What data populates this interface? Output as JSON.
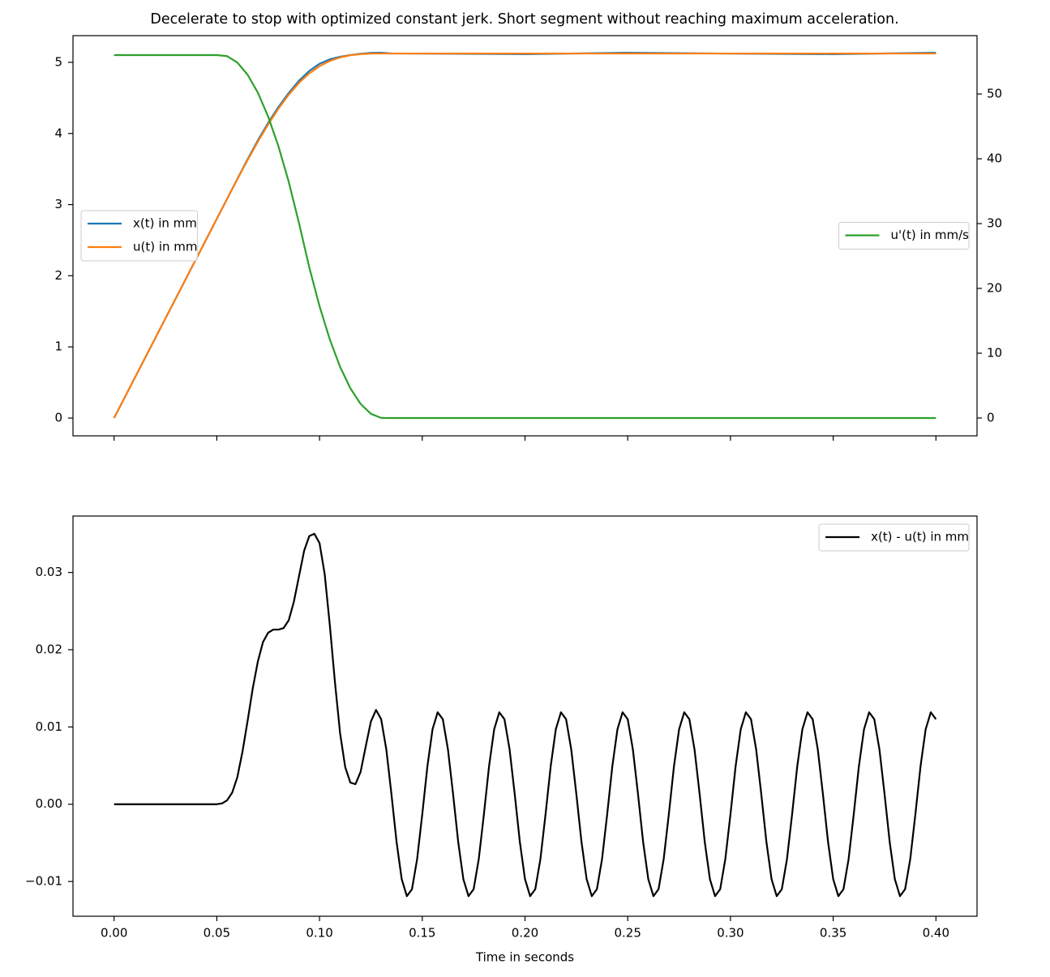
{
  "chart_data": [
    {
      "type": "line",
      "title": "Decelerate to stop with optimized constant jerk. Short segment without reaching maximum acceleration.",
      "x": [
        0,
        0.05,
        0.055,
        0.06,
        0.065,
        0.07,
        0.075,
        0.08,
        0.085,
        0.09,
        0.095,
        0.1,
        0.105,
        0.11,
        0.115,
        0.12,
        0.125,
        0.13,
        0.135,
        0.15,
        0.2,
        0.25,
        0.3,
        0.35,
        0.4
      ],
      "series": [
        {
          "name": "x(t)  in mm",
          "color": "#1f77b4",
          "values": [
            0,
            2.8,
            3.0803,
            3.3605,
            3.6378,
            3.9035,
            4.1492,
            4.3716,
            4.5688,
            4.7415,
            4.8797,
            4.9798,
            5.0422,
            5.0782,
            5.1023,
            5.1202,
            5.1334,
            5.135,
            5.1253,
            5.1227,
            5.1143,
            5.135,
            5.1227,
            5.1143,
            5.135
          ]
        },
        {
          "name": "u(t)  in mm",
          "color": "#ff7f0e",
          "values": [
            0,
            2.8,
            3.0798,
            3.357,
            3.627,
            3.885,
            4.127,
            4.349,
            4.545,
            4.712,
            4.845,
            4.946,
            5.019,
            5.069,
            5.0995,
            5.116,
            5.1227,
            5.124,
            5.124,
            5.124,
            5.124,
            5.124,
            5.124,
            5.124,
            5.124
          ]
        },
        {
          "name": "u'(t)  in mm/s",
          "color": "#2ca02c",
          "axis": "y2",
          "values": [
            56,
            56,
            55.84,
            54.85,
            52.97,
            50.19,
            46.51,
            41.93,
            36.46,
            30.09,
            23.26,
            17.25,
            12.13,
            7.91,
            4.59,
            2.17,
            0.65,
            0.02,
            0,
            0,
            0,
            0,
            0,
            0,
            0
          ]
        }
      ],
      "xlim": [
        -0.02,
        0.42
      ],
      "xticks": [
        0,
        0.05,
        0.1,
        0.15,
        0.2,
        0.25,
        0.3,
        0.35,
        0.4
      ],
      "xticklabels": false,
      "ylim": [
        -0.25,
        5.375
      ],
      "yticks": [
        0,
        1,
        2,
        3,
        4,
        5
      ],
      "y2lim": [
        -2.75,
        59
      ],
      "y2ticks": [
        0,
        10,
        20,
        30,
        40,
        50
      ],
      "legend": "center left",
      "legend2": "center right"
    },
    {
      "type": "line",
      "x": [
        0,
        0.05,
        0.0525,
        0.055,
        0.0575,
        0.06,
        0.0625,
        0.065,
        0.0675,
        0.07,
        0.0725,
        0.075,
        0.0775,
        0.08,
        0.0825,
        0.085,
        0.0875,
        0.09,
        0.0925,
        0.095,
        0.0975,
        0.1,
        0.1025,
        0.105,
        0.1075,
        0.11,
        0.1125,
        0.115,
        0.1175,
        0.12,
        0.1225,
        0.125,
        0.1275,
        0.13,
        0.1325,
        0.135,
        0.1375,
        0.14,
        0.1425,
        0.145,
        0.1475,
        0.15,
        0.1525,
        0.155,
        0.1575,
        0.16,
        0.1625,
        0.165,
        0.1675,
        0.17,
        0.1725,
        0.175,
        0.1775,
        0.18,
        0.1825,
        0.185,
        0.1875,
        0.19,
        0.1925,
        0.195,
        0.1975,
        0.2,
        0.2025,
        0.205,
        0.2075,
        0.21,
        0.2125,
        0.215,
        0.2175,
        0.22,
        0.2225,
        0.225,
        0.2275,
        0.23,
        0.2325,
        0.235,
        0.2375,
        0.24,
        0.2425,
        0.245,
        0.2475,
        0.25,
        0.2525,
        0.255,
        0.2575,
        0.26,
        0.2625,
        0.265,
        0.2675,
        0.27,
        0.2725,
        0.275,
        0.2775,
        0.28,
        0.2825,
        0.285,
        0.2875,
        0.29,
        0.2925,
        0.295,
        0.2975,
        0.3,
        0.3025,
        0.305,
        0.3075,
        0.31,
        0.3125,
        0.315,
        0.3175,
        0.32,
        0.3225,
        0.325,
        0.3275,
        0.33,
        0.3325,
        0.335,
        0.3375,
        0.34,
        0.3425,
        0.345,
        0.3475,
        0.35,
        0.3525,
        0.355,
        0.3575,
        0.36,
        0.3625,
        0.365,
        0.3675,
        0.37,
        0.3725,
        0.375,
        0.3775,
        0.38,
        0.3825,
        0.385,
        0.3875,
        0.39,
        0.3925,
        0.395,
        0.3975,
        0.4
      ],
      "series": [
        {
          "name": "x(t) - u(t)  in mm",
          "color": "#000000",
          "values": [
            0,
            0,
            0.0001,
            0.0005,
            0.0015,
            0.0035,
            0.0068,
            0.0108,
            0.015,
            0.0185,
            0.021,
            0.0222,
            0.0226,
            0.0226,
            0.0228,
            0.0238,
            0.0262,
            0.0295,
            0.0328,
            0.0347,
            0.035,
            0.0338,
            0.0298,
            0.0232,
            0.0158,
            0.0092,
            0.0048,
            0.0028,
            0.0026,
            0.0042,
            0.0075,
            0.0107,
            0.0122,
            0.011,
            0.0071,
            0.0013,
            -0.0049,
            -0.0097,
            -0.0119,
            -0.011,
            -0.0071,
            -0.0013,
            0.0049,
            0.0097,
            0.0119,
            0.011,
            0.0071,
            0.0013,
            -0.0049,
            -0.0097,
            -0.0119,
            -0.011,
            -0.0071,
            -0.0013,
            0.0049,
            0.0097,
            0.0119,
            0.011,
            0.0071,
            0.0013,
            -0.0049,
            -0.0097,
            -0.0119,
            -0.011,
            -0.0071,
            -0.0013,
            0.0049,
            0.0097,
            0.0119,
            0.011,
            0.0071,
            0.0013,
            -0.0049,
            -0.0097,
            -0.0119,
            -0.011,
            -0.0071,
            -0.0013,
            0.0049,
            0.0097,
            0.0119,
            0.011,
            0.0071,
            0.0013,
            -0.0049,
            -0.0097,
            -0.0119,
            -0.011,
            -0.0071,
            -0.0013,
            0.0049,
            0.0097,
            0.0119,
            0.011,
            0.0071,
            0.0013,
            -0.0049,
            -0.0097,
            -0.0119,
            -0.011,
            -0.0071,
            -0.0013,
            0.0049,
            0.0097,
            0.0119,
            0.011,
            0.0071,
            0.0013,
            -0.0049,
            -0.0097,
            -0.0119,
            -0.011,
            -0.0071,
            -0.0013,
            0.0049,
            0.0097,
            0.0119,
            0.011,
            0.0071,
            0.0013,
            -0.0049,
            -0.0097,
            -0.0119,
            -0.011,
            -0.0071,
            -0.0013,
            0.0049,
            0.0097,
            0.0119,
            0.011,
            0.0071,
            0.0013,
            -0.0049,
            -0.0097,
            -0.0119,
            -0.011,
            -0.0071,
            -0.0013,
            0.0049,
            0.0097,
            0.0119,
            0.011
          ]
        }
      ],
      "xlim": [
        -0.02,
        0.42
      ],
      "xticks": [
        {
          "value": 0,
          "label": "0.00"
        },
        0.05,
        {
          "value": 0.1,
          "label": "0.10"
        },
        0.15,
        {
          "value": 0.2,
          "label": "0.20"
        },
        0.25,
        {
          "value": 0.3,
          "label": "0.30"
        },
        0.35,
        {
          "value": 0.4,
          "label": "0.40"
        }
      ],
      "xlabel": "Time in seconds",
      "ylim": [
        -0.0145,
        0.0373
      ],
      "yticks": [
        {
          "value": -0.01,
          "label": "−0.01"
        },
        {
          "value": 0,
          "label": "0.00"
        },
        0.01,
        0.02,
        0.03
      ],
      "legend": "upper right"
    }
  ]
}
